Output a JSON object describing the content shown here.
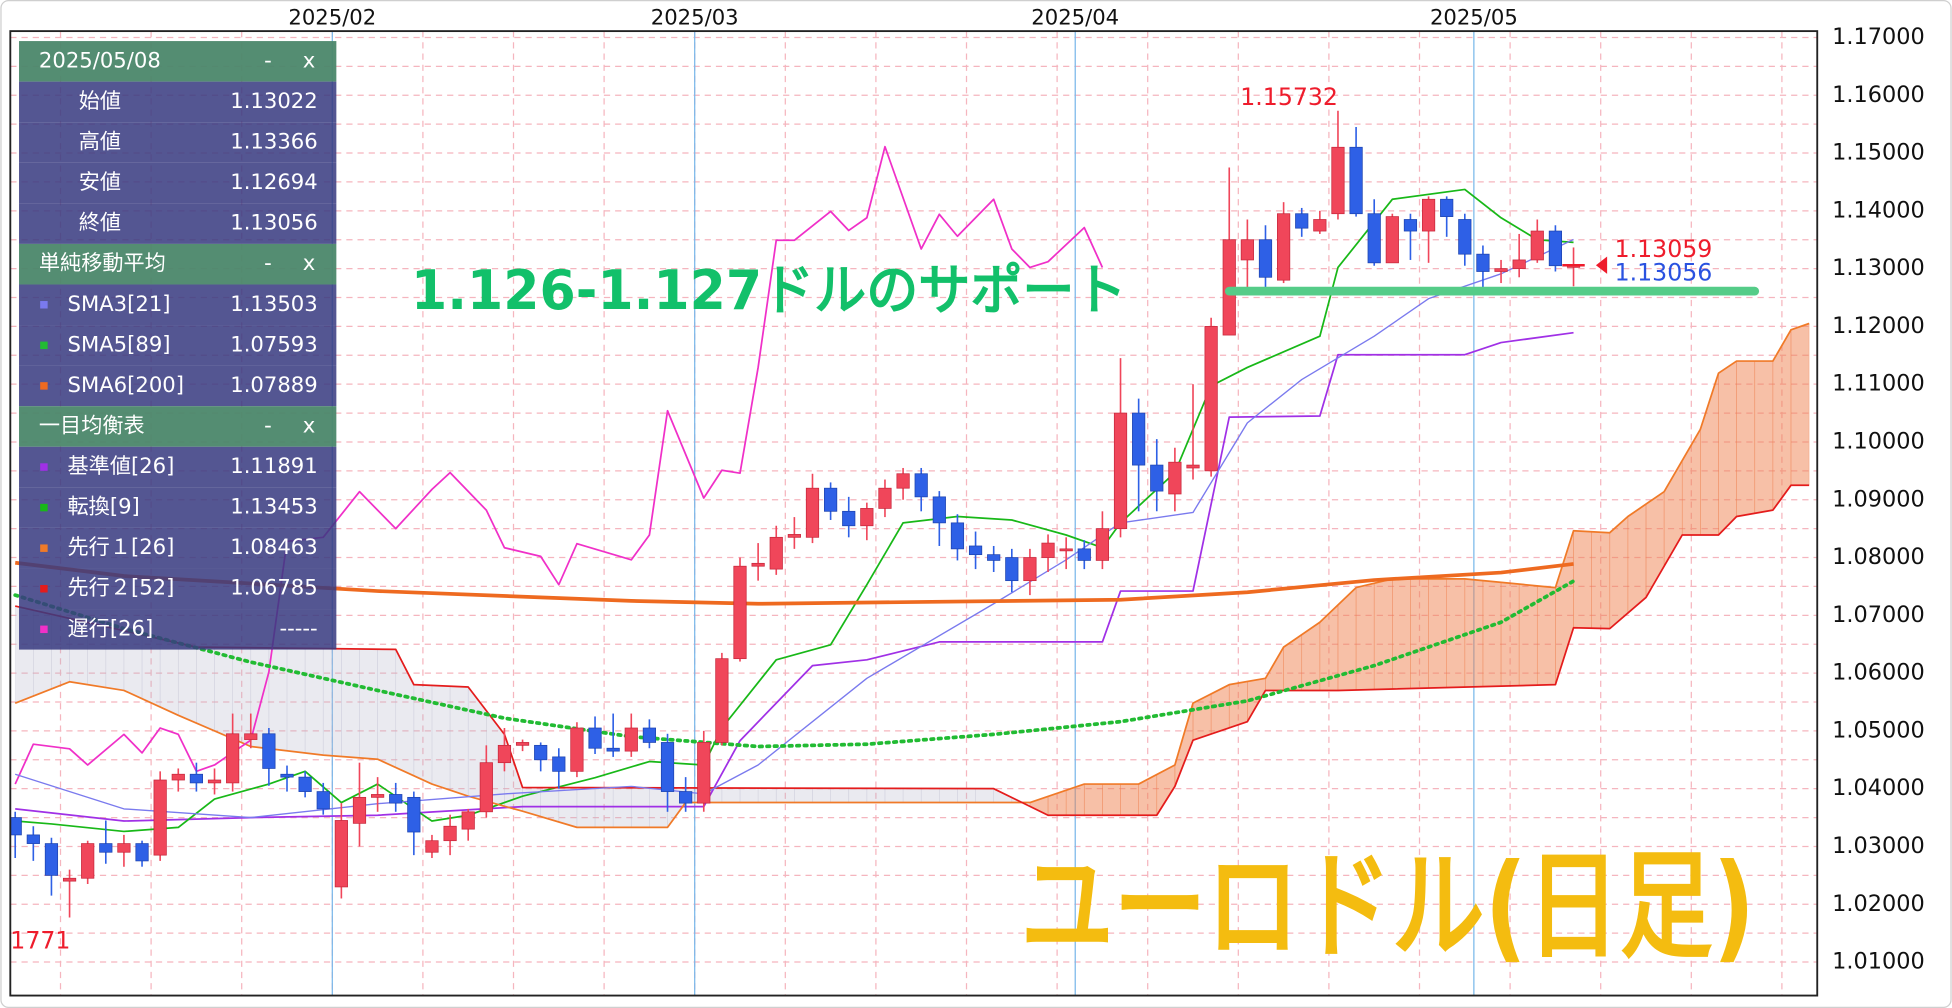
{
  "chart_data": {
    "type": "candlestick",
    "title": "ユーロドル(日足)",
    "annotation": "1.126-1.127ドルのサポート",
    "xlim": [
      -0.27,
      99.45
    ],
    "xticks": [
      {
        "value": 17.5,
        "label": "2025/02"
      },
      {
        "value": 37.5,
        "label": "2025/03"
      },
      {
        "value": 58.5,
        "label": "2025/04"
      },
      {
        "value": 80.5,
        "label": "2025/05"
      }
    ],
    "ylim": [
      1.0042,
      1.1711
    ],
    "yticks": [
      {
        "value": 1.01,
        "label": "1.01000"
      },
      {
        "value": 1.02,
        "label": "1.02000"
      },
      {
        "value": 1.03,
        "label": "1.03000"
      },
      {
        "value": 1.04,
        "label": "1.04000"
      },
      {
        "value": 1.05,
        "label": "1.05000"
      },
      {
        "value": 1.06,
        "label": "1.06000"
      },
      {
        "value": 1.07,
        "label": "1.07000"
      },
      {
        "value": 1.08,
        "label": "1.08000"
      },
      {
        "value": 1.09,
        "label": "1.09000"
      },
      {
        "value": 1.1,
        "label": "1.10000"
      },
      {
        "value": 1.11,
        "label": "1.11000"
      },
      {
        "value": 1.12,
        "label": "1.12000"
      },
      {
        "value": 1.13,
        "label": "1.13000"
      },
      {
        "value": 1.14,
        "label": "1.14000"
      },
      {
        "value": 1.15,
        "label": "1.15000"
      },
      {
        "value": 1.16,
        "label": "1.16000"
      },
      {
        "value": 1.17,
        "label": "1.17000"
      }
    ],
    "grid": true,
    "up_color": "#f0465a",
    "down_color": "#2e60e6",
    "candles": {
      "open": [
        1.035,
        1.032,
        1.0305,
        1.024,
        1.0245,
        1.0305,
        1.029,
        1.0305,
        1.0285,
        1.0415,
        1.0425,
        1.041,
        1.041,
        1.0485,
        1.0495,
        1.0425,
        1.042,
        1.0395,
        1.023,
        1.034,
        1.0385,
        1.039,
        1.0385,
        1.029,
        1.031,
        1.033,
        1.036,
        1.0445,
        1.0475,
        1.0475,
        1.0455,
        1.043,
        1.0505,
        1.047,
        1.0465,
        1.0505,
        1.048,
        1.0395,
        1.0375,
        1.048,
        1.0625,
        1.0785,
        1.078,
        1.0835,
        1.0835,
        1.092,
        1.088,
        1.0855,
        1.0885,
        1.092,
        1.0945,
        1.0905,
        1.086,
        1.082,
        1.0805,
        1.08,
        1.076,
        1.08,
        1.0815,
        1.0815,
        1.0795,
        1.085,
        1.105,
        1.096,
        1.091,
        1.0955,
        1.095,
        1.1185,
        1.1315,
        1.135,
        1.128,
        1.1395,
        1.1365,
        1.1395,
        1.151,
        1.1395,
        1.131,
        1.1385,
        1.1365,
        1.142,
        1.1385,
        1.1325,
        1.1295,
        1.13,
        1.1315,
        1.1365,
        1.13022
      ],
      "high": [
        1.036,
        1.0335,
        1.0315,
        1.026,
        1.031,
        1.0345,
        1.032,
        1.031,
        1.043,
        1.0435,
        1.0445,
        1.0435,
        1.053,
        1.053,
        1.0505,
        1.044,
        1.043,
        1.041,
        1.0375,
        1.0445,
        1.042,
        1.041,
        1.0395,
        1.032,
        1.0355,
        1.0365,
        1.0475,
        1.0505,
        1.0485,
        1.048,
        1.047,
        1.0515,
        1.0525,
        1.053,
        1.053,
        1.052,
        1.0495,
        1.042,
        1.05,
        1.0635,
        1.08,
        1.0825,
        1.0855,
        1.087,
        1.0945,
        1.093,
        1.0905,
        1.0895,
        1.0935,
        1.0955,
        1.0955,
        1.0915,
        1.0875,
        1.0845,
        1.082,
        1.0815,
        1.0815,
        1.084,
        1.0835,
        1.083,
        1.088,
        1.1145,
        1.1075,
        1.1005,
        1.099,
        1.11,
        1.1215,
        1.1475,
        1.1385,
        1.1375,
        1.1415,
        1.1405,
        1.14,
        1.15732,
        1.1545,
        1.142,
        1.1395,
        1.1395,
        1.1425,
        1.1425,
        1.1395,
        1.134,
        1.1315,
        1.136,
        1.1385,
        1.1375,
        1.13366
      ],
      "low": [
        1.028,
        1.0275,
        1.0215,
        1.0177,
        1.0235,
        1.027,
        1.0265,
        1.0265,
        1.0275,
        1.0395,
        1.0395,
        1.039,
        1.0395,
        1.047,
        1.0405,
        1.0395,
        1.0385,
        1.0355,
        1.021,
        1.03,
        1.036,
        1.036,
        1.0285,
        1.028,
        1.0285,
        1.031,
        1.035,
        1.043,
        1.0465,
        1.043,
        1.04,
        1.042,
        1.046,
        1.0455,
        1.0455,
        1.047,
        1.036,
        1.036,
        1.036,
        1.0475,
        1.062,
        1.076,
        1.077,
        1.0815,
        1.0825,
        1.0865,
        1.0835,
        1.083,
        1.087,
        1.09,
        1.088,
        1.082,
        1.0795,
        1.078,
        1.0775,
        1.074,
        1.0735,
        1.0775,
        1.078,
        1.078,
        1.078,
        1.0835,
        1.088,
        1.088,
        1.088,
        1.0935,
        1.094,
        1.1185,
        1.126,
        1.1265,
        1.1275,
        1.1355,
        1.136,
        1.1385,
        1.139,
        1.1305,
        1.131,
        1.1315,
        1.131,
        1.1355,
        1.1305,
        1.1265,
        1.1275,
        1.1285,
        1.131,
        1.1295,
        1.12694
      ],
      "close": [
        1.032,
        1.0305,
        1.025,
        1.0245,
        1.0305,
        1.029,
        1.0305,
        1.0275,
        1.0415,
        1.0425,
        1.041,
        1.0415,
        1.0495,
        1.0495,
        1.0435,
        1.042,
        1.0395,
        1.0365,
        1.0345,
        1.0385,
        1.039,
        1.0375,
        1.0325,
        1.031,
        1.0335,
        1.036,
        1.0445,
        1.0475,
        1.048,
        1.045,
        1.043,
        1.0505,
        1.047,
        1.0465,
        1.0505,
        1.048,
        1.0395,
        1.0375,
        1.048,
        1.0625,
        1.0785,
        1.079,
        1.0835,
        1.084,
        1.092,
        1.088,
        1.0855,
        1.0885,
        1.092,
        1.0945,
        1.0905,
        1.086,
        1.0815,
        1.0805,
        1.0795,
        1.076,
        1.08,
        1.0825,
        1.0815,
        1.0795,
        1.085,
        1.105,
        1.096,
        1.0915,
        1.0965,
        1.096,
        1.12,
        1.135,
        1.135,
        1.1285,
        1.1395,
        1.137,
        1.1385,
        1.151,
        1.1395,
        1.131,
        1.139,
        1.1365,
        1.142,
        1.139,
        1.1325,
        1.1295,
        1.13,
        1.1315,
        1.1365,
        1.1305,
        1.13056
      ]
    },
    "high_label_index": 73,
    "low_label": "1771",
    "ask": 1.13059,
    "ask_color": "#ee1c2c",
    "bid_color": "#2a52e0",
    "support": {
      "value": 1.1261,
      "x": [
        67,
        96
      ],
      "color": "#55cc88"
    },
    "annotation_color": "#12c06a",
    "title_color": "#f4bc10",
    "sma": [
      {
        "name": "SMA3[21]",
        "color": "#7a7aee",
        "style": "thin",
        "x": [
          0,
          6,
          13,
          20,
          27,
          34,
          38,
          41,
          47,
          54,
          58,
          61,
          65,
          68,
          71,
          75,
          78,
          82,
          86
        ],
        "values": [
          1.0425,
          1.0365,
          1.035,
          1.0374,
          1.0391,
          1.0404,
          1.0391,
          1.0441,
          1.0591,
          1.072,
          1.0796,
          1.086,
          1.0878,
          1.1033,
          1.1108,
          1.1183,
          1.1248,
          1.1291,
          1.13503
        ]
      },
      {
        "name": "SMA5[89]",
        "color": "#22bb33",
        "style": "dotted",
        "x": [
          0,
          6,
          13,
          20,
          27,
          34,
          41,
          47,
          54,
          61,
          68,
          75,
          82,
          86
        ],
        "values": [
          1.0735,
          1.0677,
          1.0619,
          1.057,
          1.0522,
          1.049,
          1.0473,
          1.0477,
          1.0494,
          1.0516,
          1.0552,
          1.0613,
          1.0688,
          1.07593
        ]
      },
      {
        "name": "SMA6[200]",
        "color": "#ee6a20",
        "style": "thick",
        "x": [
          0,
          6,
          20,
          34,
          41,
          61,
          68,
          75,
          82,
          86
        ],
        "values": [
          1.0791,
          1.0768,
          1.0742,
          1.0725,
          1.072,
          1.0727,
          1.074,
          1.0761,
          1.0774,
          1.07889
        ]
      }
    ],
    "ichimoku": [
      {
        "name": "基準値[26]",
        "color": "#a030e6",
        "kind": "kijun",
        "x": [
          0,
          6,
          13,
          20,
          28,
          38,
          40,
          44,
          47,
          51,
          60,
          61,
          65,
          67,
          72,
          73,
          80,
          82,
          86
        ],
        "values": [
          1.0365,
          1.0344,
          1.035,
          1.0354,
          1.0369,
          1.0369,
          1.0483,
          1.0613,
          1.0623,
          1.0654,
          1.0654,
          1.0742,
          1.0742,
          1.1043,
          1.1045,
          1.1151,
          1.1151,
          1.1172,
          1.11891
        ]
      },
      {
        "name": "転換[9]",
        "color": "#18b818",
        "kind": "tenkan",
        "x": [
          0,
          2,
          6,
          9,
          11,
          14,
          16,
          18,
          20,
          23,
          25,
          28,
          32,
          35,
          38,
          39,
          42,
          45,
          47,
          49,
          52,
          55,
          58,
          60,
          61,
          64,
          66,
          68,
          72,
          73,
          76,
          80,
          82,
          84,
          86
        ],
        "values": [
          1.0344,
          1.0339,
          1.0326,
          1.0333,
          1.0382,
          1.0408,
          1.043,
          1.0376,
          1.0408,
          1.0344,
          1.0354,
          1.0387,
          1.0419,
          1.0447,
          1.0441,
          1.0505,
          1.0623,
          1.0649,
          1.0753,
          1.086,
          1.0871,
          1.0865,
          1.0839,
          1.0817,
          1.086,
          1.0947,
          1.1097,
          1.1129,
          1.1183,
          1.1302,
          1.142,
          1.1437,
          1.1388,
          1.135,
          1.13453
        ]
      },
      {
        "name": "先行１[26]",
        "color": "#f07a28",
        "kind": "span-a",
        "x": [
          0,
          3,
          6,
          9,
          13,
          17,
          20,
          23,
          25,
          28,
          31,
          36,
          37,
          56,
          59,
          62,
          64,
          65,
          67,
          69,
          70,
          72,
          74,
          76,
          80,
          85,
          86,
          88,
          89,
          91,
          93,
          94,
          95,
          97,
          98,
          99
        ],
        "values": [
          1.0548,
          1.0585,
          1.057,
          1.0527,
          1.0473,
          1.0458,
          1.0451,
          1.0408,
          1.0387,
          1.0361,
          1.0333,
          1.0333,
          1.0376,
          1.0376,
          1.0408,
          1.0408,
          1.0441,
          1.0548,
          1.058,
          1.0591,
          1.0645,
          1.0688,
          1.0748,
          1.0763,
          1.0763,
          1.0748,
          1.08463,
          1.0843,
          1.0871,
          1.0914,
          1.1022,
          1.1119,
          1.114,
          1.114,
          1.1194,
          1.1205
        ]
      },
      {
        "name": "先行２[52]",
        "color": "#e41c1c",
        "kind": "span-b",
        "x": [
          0,
          10,
          21,
          22,
          25,
          27,
          28,
          54,
          57,
          63,
          64,
          65,
          68,
          69,
          73,
          85,
          86,
          88,
          90,
          92,
          94,
          95,
          97,
          98,
          99
        ],
        "values": [
          1.0716,
          1.0645,
          1.0641,
          1.058,
          1.0576,
          1.0494,
          1.0402,
          1.04,
          1.0354,
          1.0354,
          1.0404,
          1.0484,
          1.0516,
          1.057,
          1.057,
          1.058,
          1.06785,
          1.0677,
          1.0731,
          1.0839,
          1.0839,
          1.0871,
          1.0882,
          1.0925,
          1.0925
        ]
      },
      {
        "name": "遅行[26]",
        "color": "#f030c8",
        "kind": "chikou",
        "x": [
          0,
          1,
          3,
          4,
          6,
          7,
          8,
          9,
          10,
          11,
          13,
          14,
          15,
          17,
          19,
          21,
          23,
          24,
          26,
          27,
          29,
          30,
          31,
          34,
          35,
          36,
          38,
          39,
          40,
          41,
          42,
          43,
          45,
          46,
          47,
          48,
          50,
          51,
          52,
          54,
          55,
          56,
          57,
          59,
          60
        ],
        "values": [
          1.0408,
          1.0477,
          1.0469,
          1.0441,
          1.0494,
          1.0462,
          1.0505,
          1.0494,
          1.043,
          1.0441,
          1.0484,
          1.0602,
          1.0828,
          1.0835,
          1.0914,
          1.085,
          1.0918,
          1.0947,
          1.0882,
          1.0817,
          1.0802,
          1.0753,
          1.0824,
          1.0796,
          1.0839,
          1.1054,
          1.0903,
          1.0951,
          1.0946,
          1.1129,
          1.1349,
          1.1349,
          1.1399,
          1.1366,
          1.1388,
          1.1511,
          1.1334,
          1.1394,
          1.1356,
          1.142,
          1.1334,
          1.1302,
          1.1312,
          1.1371,
          1.1302
        ]
      }
    ],
    "cloud_colors": {
      "bullish": "rgba(240,130,80,0.5)",
      "bearish": "rgba(185,185,205,0.3)"
    }
  },
  "panel": {
    "date": "2025/05/08",
    "minimize": "-",
    "close": "x",
    "ohlc_labels": [
      "始値",
      "高値",
      "安値",
      "終値"
    ],
    "sma_title": "単純移動平均",
    "ichimoku_title": "一目均衡表",
    "no_value": "-----"
  }
}
